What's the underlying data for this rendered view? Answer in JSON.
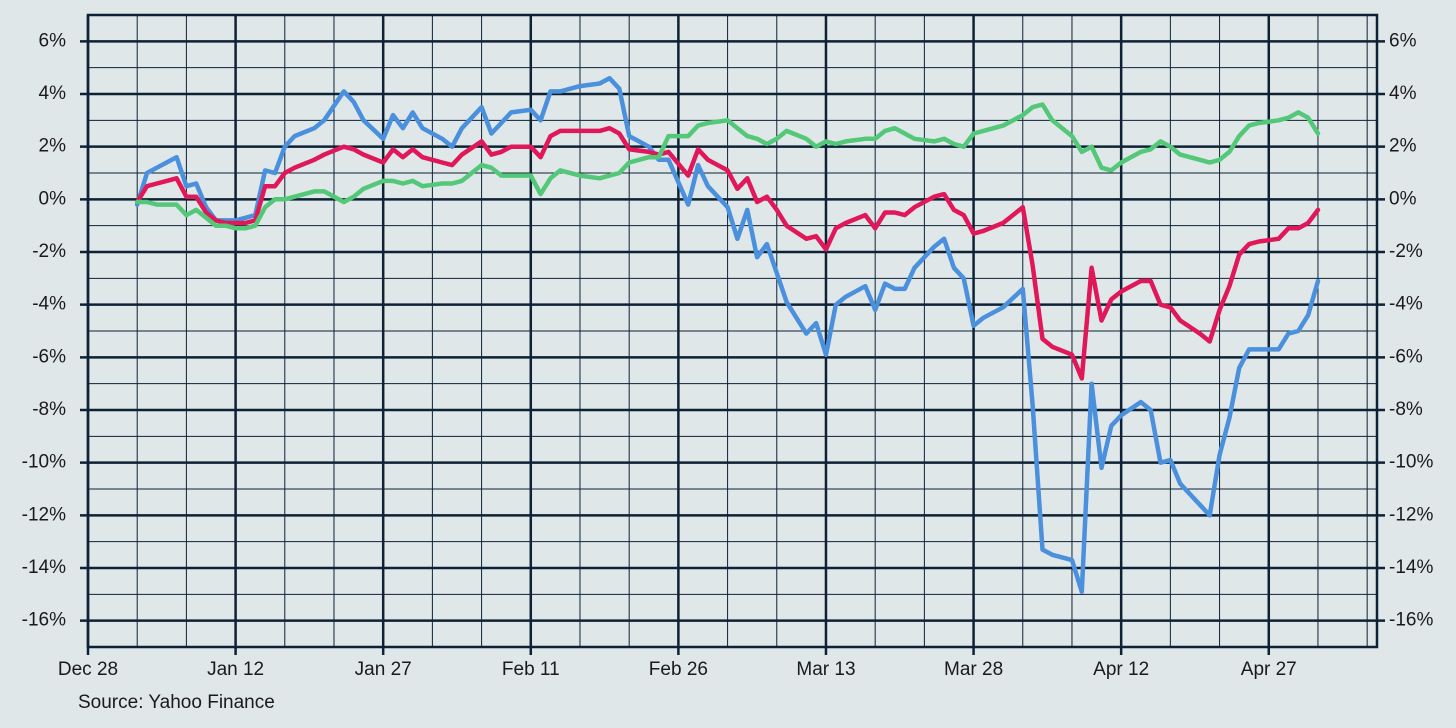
{
  "chart_data": {
    "type": "line",
    "source": "Source: Yahoo Finance",
    "x": [
      5,
      6,
      7,
      8,
      9,
      10,
      11,
      12,
      13,
      14,
      15,
      16,
      17,
      18,
      19,
      20,
      21,
      23,
      24,
      26,
      27,
      28,
      30,
      31,
      32,
      33,
      34,
      36,
      37,
      38,
      40,
      41,
      42,
      43,
      45,
      46,
      47,
      48,
      50,
      52,
      53,
      54,
      55,
      57,
      58,
      59,
      61,
      62,
      63,
      65,
      66,
      67,
      68,
      69,
      70,
      71,
      73,
      74,
      75,
      76,
      77,
      79,
      80,
      81,
      82,
      83,
      84,
      86,
      87,
      88,
      89,
      90,
      91,
      93,
      95,
      96,
      97,
      98,
      100,
      101,
      102,
      103,
      104,
      105,
      107,
      108,
      109,
      110,
      111,
      113,
      114,
      115,
      116,
      117,
      118,
      119,
      121,
      122,
      123,
      124,
      125
    ],
    "series": [
      {
        "name": "Blue",
        "color": "#4a90dc",
        "values": [
          -0.2,
          1.0,
          1.2,
          1.4,
          1.6,
          0.5,
          0.6,
          -0.3,
          -0.8,
          -0.8,
          -0.8,
          -0.7,
          -0.6,
          1.1,
          1.0,
          2.0,
          2.4,
          2.7,
          3.0,
          4.1,
          3.7,
          3.0,
          2.3,
          3.2,
          2.7,
          3.3,
          2.7,
          2.3,
          2.0,
          2.7,
          3.5,
          2.5,
          2.9,
          3.3,
          3.4,
          3.0,
          4.1,
          4.1,
          4.3,
          4.4,
          4.6,
          4.2,
          2.4,
          2.0,
          1.5,
          1.5,
          -0.2,
          1.3,
          0.5,
          -0.3,
          -1.5,
          -0.4,
          -2.2,
          -1.7,
          -2.8,
          -3.9,
          -5.1,
          -4.7,
          -5.9,
          -4.0,
          -3.7,
          -3.3,
          -4.2,
          -3.2,
          -3.4,
          -3.4,
          -2.6,
          -1.8,
          -1.5,
          -2.6,
          -3.0,
          -4.8,
          -4.5,
          -4.1,
          -3.4,
          -7.8,
          -13.3,
          -13.5,
          -13.7,
          -14.9,
          -7.0,
          -10.2,
          -8.6,
          -8.2,
          -7.7,
          -8.0,
          -10.0,
          -9.9,
          -10.8,
          -11.6,
          -12.0,
          -9.7,
          -8.3,
          -6.4,
          -5.7,
          -5.7,
          -5.7,
          -5.1,
          -5.0,
          -4.4,
          -3.1
        ]
      },
      {
        "name": "Red",
        "color": "#e0185a",
        "values": [
          -0.1,
          0.5,
          0.6,
          0.7,
          0.8,
          0.1,
          0.1,
          -0.5,
          -0.8,
          -0.9,
          -0.9,
          -0.9,
          -0.8,
          0.5,
          0.5,
          1.0,
          1.2,
          1.5,
          1.7,
          2.0,
          1.9,
          1.7,
          1.4,
          1.9,
          1.6,
          1.9,
          1.6,
          1.4,
          1.3,
          1.7,
          2.2,
          1.7,
          1.8,
          2.0,
          2.0,
          1.6,
          2.4,
          2.6,
          2.6,
          2.6,
          2.7,
          2.5,
          1.9,
          1.8,
          1.7,
          1.8,
          0.9,
          1.9,
          1.5,
          1.1,
          0.4,
          0.8,
          -0.1,
          0.1,
          -0.4,
          -1.0,
          -1.5,
          -1.4,
          -1.9,
          -1.1,
          -0.9,
          -0.6,
          -1.1,
          -0.5,
          -0.5,
          -0.6,
          -0.3,
          0.1,
          0.2,
          -0.4,
          -0.6,
          -1.3,
          -1.2,
          -0.9,
          -0.3,
          -2.5,
          -5.3,
          -5.6,
          -5.9,
          -6.8,
          -2.6,
          -4.6,
          -3.8,
          -3.5,
          -3.1,
          -3.1,
          -4.0,
          -4.1,
          -4.6,
          -5.1,
          -5.4,
          -4.2,
          -3.3,
          -2.1,
          -1.7,
          -1.6,
          -1.5,
          -1.1,
          -1.1,
          -0.9,
          -0.4
        ]
      },
      {
        "name": "Green",
        "color": "#52c878",
        "values": [
          -0.1,
          -0.1,
          -0.2,
          -0.2,
          -0.2,
          -0.6,
          -0.4,
          -0.7,
          -1.0,
          -1.0,
          -1.1,
          -1.1,
          -1.0,
          -0.3,
          0.0,
          0.0,
          0.1,
          0.3,
          0.3,
          -0.1,
          0.1,
          0.4,
          0.7,
          0.7,
          0.6,
          0.7,
          0.5,
          0.6,
          0.6,
          0.7,
          1.3,
          1.2,
          0.9,
          0.9,
          0.9,
          0.2,
          0.8,
          1.1,
          0.9,
          0.8,
          0.9,
          1.0,
          1.4,
          1.6,
          1.6,
          2.4,
          2.4,
          2.8,
          2.9,
          3.0,
          2.7,
          2.4,
          2.3,
          2.1,
          2.3,
          2.6,
          2.3,
          2.0,
          2.2,
          2.1,
          2.2,
          2.3,
          2.3,
          2.6,
          2.7,
          2.5,
          2.3,
          2.2,
          2.3,
          2.1,
          2.0,
          2.5,
          2.6,
          2.8,
          3.2,
          3.5,
          3.6,
          3.0,
          2.4,
          1.8,
          2.0,
          1.2,
          1.1,
          1.4,
          1.8,
          1.9,
          2.2,
          2.0,
          1.7,
          1.5,
          1.4,
          1.5,
          1.8,
          2.4,
          2.8,
          2.9,
          3.0,
          3.1,
          3.3,
          3.1,
          2.5
        ]
      }
    ],
    "xlim": [
      0,
      131
    ],
    "xticks": [
      {
        "value": 0,
        "label": "Dec 28"
      },
      {
        "value": 15,
        "label": "Jan 12"
      },
      {
        "value": 30,
        "label": "Jan 27"
      },
      {
        "value": 45,
        "label": "Feb 11"
      },
      {
        "value": 60,
        "label": "Feb 26"
      },
      {
        "value": 75,
        "label": "Mar 13"
      },
      {
        "value": 90,
        "label": "Mar 28"
      },
      {
        "value": 105,
        "label": "Apr 12"
      },
      {
        "value": 120,
        "label": "Apr 27"
      }
    ],
    "xminorticks": [
      5,
      10,
      20,
      25,
      35,
      40,
      50,
      55,
      65,
      70,
      80,
      85,
      95,
      100,
      110,
      115,
      125,
      130
    ],
    "ylim": [
      -17,
      7
    ],
    "yticks": [
      {
        "value": 6,
        "label": "6%"
      },
      {
        "value": 4,
        "label": "4%"
      },
      {
        "value": 2,
        "label": "2%"
      },
      {
        "value": 0,
        "label": "0%"
      },
      {
        "value": -2,
        "label": "-2%"
      },
      {
        "value": -4,
        "label": "-4%"
      },
      {
        "value": -6,
        "label": "-6%"
      },
      {
        "value": -8,
        "label": "-8%"
      },
      {
        "value": -10,
        "label": "-10%"
      },
      {
        "value": -12,
        "label": "-12%"
      },
      {
        "value": -14,
        "label": "-14%"
      },
      {
        "value": -16,
        "label": "-16%"
      }
    ],
    "yminorticks": [
      5,
      3,
      1,
      -1,
      -3,
      -5,
      -7,
      -9,
      -11,
      -13,
      -15
    ],
    "grid": true
  }
}
